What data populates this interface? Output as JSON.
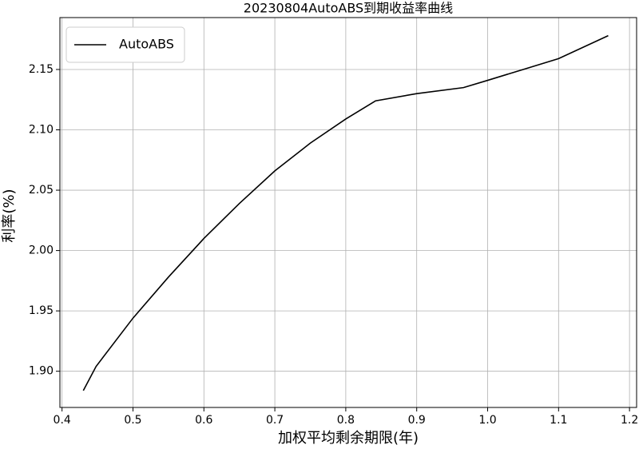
{
  "chart_data": {
    "type": "line",
    "title": "20230804AutoABS到期收益率曲线",
    "x_label": "加权平均剩余期限(年)",
    "y_label": "利率(%)",
    "x": [
      0.43,
      0.448,
      0.5,
      0.55,
      0.6,
      0.65,
      0.7,
      0.75,
      0.8,
      0.842,
      0.9,
      0.966,
      1.0,
      1.05,
      1.1,
      1.17
    ],
    "series": [
      {
        "name": "AutoABS",
        "color": "#000000",
        "values": [
          1.884,
          1.904,
          1.944,
          1.978,
          2.01,
          2.039,
          2.066,
          2.089,
          2.109,
          2.124,
          2.13,
          2.135,
          2.141,
          2.15,
          2.159,
          2.178
        ]
      }
    ],
    "xlim": [
      0.397,
      1.21
    ],
    "ylim": [
      1.87,
      2.193
    ],
    "xticks": [
      0.4,
      0.5,
      0.6,
      0.7,
      0.8,
      0.9,
      {
        "value": 1,
        "label": "1.0"
      },
      1.1,
      1.2
    ],
    "yticks": [
      {
        "value": 1.9,
        "label": "1.90"
      },
      1.95,
      {
        "value": 2,
        "label": "2.00"
      },
      2.05,
      {
        "value": 2.1,
        "label": "2.10"
      },
      2.15
    ],
    "grid": true,
    "legend": "upper-left"
  }
}
